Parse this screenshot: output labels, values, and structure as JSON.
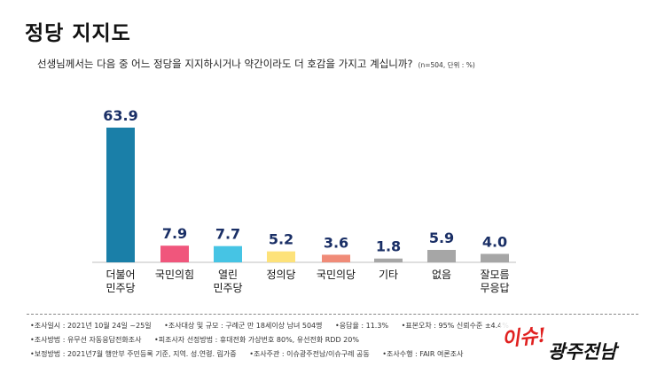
{
  "header": {
    "title": "정당 지지도",
    "question": "선생님께서는 다음 중 어느 정당을 지지하시거나 약간이라도 더 호감을 가지고 계십니까?",
    "note": "(n=504, 단위 : %)"
  },
  "chart_data": {
    "type": "bar",
    "categories": [
      [
        "더불어",
        "민주당"
      ],
      [
        "국민의힘"
      ],
      [
        "열린",
        "민주당"
      ],
      [
        "정의당"
      ],
      [
        "국민의당"
      ],
      [
        "기타"
      ],
      [
        "없음"
      ],
      [
        "잘모름",
        "무응답"
      ]
    ],
    "values": [
      63.9,
      7.9,
      7.7,
      5.2,
      3.6,
      1.8,
      5.9,
      4.0
    ],
    "value_labels": [
      "63.9",
      "7.9",
      "7.7",
      "5.2",
      "3.6",
      "1.8",
      "5.9",
      "4.0"
    ],
    "colors": [
      "#1a7fa8",
      "#f0567c",
      "#46c4e4",
      "#fde27a",
      "#f08b78",
      "#a6a6a6",
      "#a6a6a6",
      "#a6a6a6"
    ],
    "ylim": [
      0,
      70
    ],
    "grid": false
  },
  "footer": {
    "lines": [
      [
        "•조사일시 : 2021년 10월 24일 ~25일",
        "•조사대상 및 규모 : 구례군 만 18세이상 남녀 504명",
        "•응답율 : 11.3%",
        "•표본오차 : 95% 신뢰수준 ±4.4%"
      ],
      [
        "•조사방법 : 유무선 자동응답전화조사",
        "•피조사자 선정방법 : 휴대전화 가상번호 80%, 유선전화 RDD 20%"
      ],
      [
        "•보정방법 : 2021년7월 행안부 주민등록 기준, 지역. 성.연령. 림가중",
        "•조사주관 : 이슈광주전남/이슈구례 공동",
        "•조사수행 : FAIR 여론조사"
      ]
    ]
  },
  "logo": {
    "text_a": "이슈!",
    "text_b": "광주전남"
  }
}
